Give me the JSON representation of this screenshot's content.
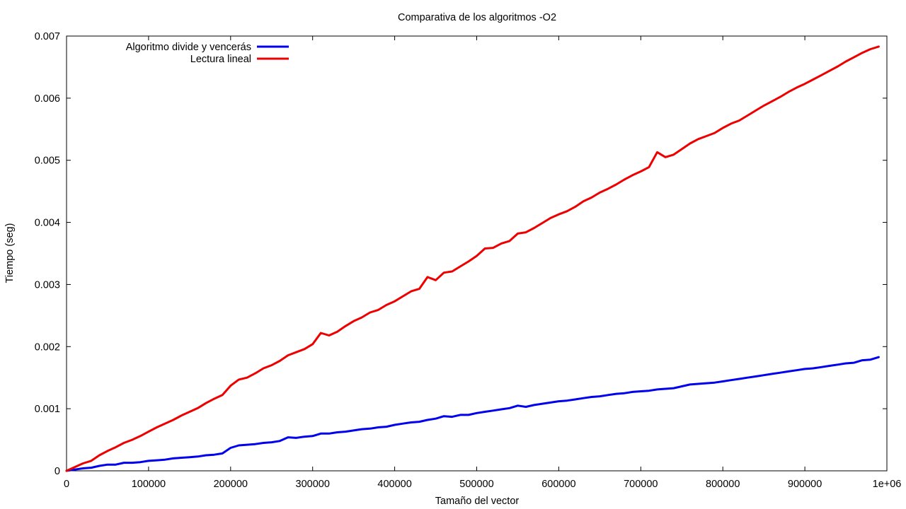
{
  "chart_data": {
    "type": "line",
    "title": "Comparativa de los algoritmos -O2",
    "xlabel": "Tamaño del vector",
    "ylabel": "Tiempo (seg)",
    "xlim": [
      0,
      1000000
    ],
    "ylim": [
      0,
      0.007
    ],
    "x_ticks": [
      {
        "value": 0,
        "label": "0"
      },
      {
        "value": 100000,
        "label": "100000"
      },
      {
        "value": 200000,
        "label": "200000"
      },
      {
        "value": 300000,
        "label": "300000"
      },
      {
        "value": 400000,
        "label": "400000"
      },
      {
        "value": 500000,
        "label": "500000"
      },
      {
        "value": 600000,
        "label": "600000"
      },
      {
        "value": 700000,
        "label": "700000"
      },
      {
        "value": 800000,
        "label": "800000"
      },
      {
        "value": 900000,
        "label": "900000"
      },
      {
        "value": 1000000,
        "label": "1e+06"
      }
    ],
    "y_ticks": [
      {
        "value": 0,
        "label": "0"
      },
      {
        "value": 0.001,
        "label": "0.001"
      },
      {
        "value": 0.002,
        "label": "0.002"
      },
      {
        "value": 0.003,
        "label": "0.003"
      },
      {
        "value": 0.004,
        "label": "0.004"
      },
      {
        "value": 0.005,
        "label": "0.005"
      },
      {
        "value": 0.006,
        "label": "0.006"
      },
      {
        "value": 0.007,
        "label": "0.007"
      }
    ],
    "grid": false,
    "legend_position": "top-left",
    "series": [
      {
        "name": "Algoritmo divide y vencerás",
        "color": "#0000ee",
        "points": [
          [
            0,
            0.0
          ],
          [
            10000,
            2e-05
          ],
          [
            20000,
            4e-05
          ],
          [
            30000,
            5e-05
          ],
          [
            40000,
            8e-05
          ],
          [
            50000,
            0.0001
          ],
          [
            60000,
            0.0001
          ],
          [
            70000,
            0.00013
          ],
          [
            80000,
            0.00013
          ],
          [
            90000,
            0.00014
          ],
          [
            100000,
            0.00016
          ],
          [
            110000,
            0.00017
          ],
          [
            120000,
            0.00018
          ],
          [
            130000,
            0.0002
          ],
          [
            140000,
            0.00021
          ],
          [
            150000,
            0.00022
          ],
          [
            160000,
            0.00023
          ],
          [
            170000,
            0.00025
          ],
          [
            180000,
            0.00026
          ],
          [
            190000,
            0.00028
          ],
          [
            200000,
            0.00037
          ],
          [
            210000,
            0.00041
          ],
          [
            220000,
            0.00042
          ],
          [
            230000,
            0.00043
          ],
          [
            240000,
            0.00045
          ],
          [
            250000,
            0.00046
          ],
          [
            260000,
            0.00048
          ],
          [
            270000,
            0.00054
          ],
          [
            280000,
            0.00053
          ],
          [
            290000,
            0.00055
          ],
          [
            300000,
            0.00056
          ],
          [
            310000,
            0.0006
          ],
          [
            320000,
            0.0006
          ],
          [
            330000,
            0.00062
          ],
          [
            340000,
            0.00063
          ],
          [
            350000,
            0.00065
          ],
          [
            360000,
            0.00067
          ],
          [
            370000,
            0.00068
          ],
          [
            380000,
            0.0007
          ],
          [
            390000,
            0.00071
          ],
          [
            400000,
            0.00074
          ],
          [
            410000,
            0.00076
          ],
          [
            420000,
            0.00078
          ],
          [
            430000,
            0.00079
          ],
          [
            440000,
            0.00082
          ],
          [
            450000,
            0.00084
          ],
          [
            460000,
            0.00088
          ],
          [
            470000,
            0.00087
          ],
          [
            480000,
            0.0009
          ],
          [
            490000,
            0.0009
          ],
          [
            500000,
            0.00093
          ],
          [
            510000,
            0.00095
          ],
          [
            520000,
            0.00097
          ],
          [
            530000,
            0.00099
          ],
          [
            540000,
            0.00101
          ],
          [
            550000,
            0.00105
          ],
          [
            560000,
            0.00103
          ],
          [
            570000,
            0.00106
          ],
          [
            580000,
            0.00108
          ],
          [
            590000,
            0.0011
          ],
          [
            600000,
            0.00112
          ],
          [
            610000,
            0.00113
          ],
          [
            620000,
            0.00115
          ],
          [
            630000,
            0.00117
          ],
          [
            640000,
            0.00119
          ],
          [
            650000,
            0.0012
          ],
          [
            660000,
            0.00122
          ],
          [
            670000,
            0.00124
          ],
          [
            680000,
            0.00125
          ],
          [
            690000,
            0.00127
          ],
          [
            700000,
            0.00128
          ],
          [
            710000,
            0.00129
          ],
          [
            720000,
            0.00131
          ],
          [
            730000,
            0.00132
          ],
          [
            740000,
            0.00133
          ],
          [
            750000,
            0.00136
          ],
          [
            760000,
            0.00139
          ],
          [
            770000,
            0.0014
          ],
          [
            780000,
            0.00141
          ],
          [
            790000,
            0.00142
          ],
          [
            800000,
            0.00144
          ],
          [
            810000,
            0.00146
          ],
          [
            820000,
            0.00148
          ],
          [
            830000,
            0.0015
          ],
          [
            840000,
            0.00152
          ],
          [
            850000,
            0.00154
          ],
          [
            860000,
            0.00156
          ],
          [
            870000,
            0.00158
          ],
          [
            880000,
            0.0016
          ],
          [
            890000,
            0.00162
          ],
          [
            900000,
            0.00164
          ],
          [
            910000,
            0.00165
          ],
          [
            920000,
            0.00167
          ],
          [
            930000,
            0.00169
          ],
          [
            940000,
            0.00171
          ],
          [
            950000,
            0.00173
          ],
          [
            960000,
            0.00174
          ],
          [
            970000,
            0.00178
          ],
          [
            980000,
            0.00179
          ],
          [
            990000,
            0.00183
          ]
        ]
      },
      {
        "name": "Lectura lineal",
        "color": "#ee0000",
        "points": [
          [
            0,
            0.0
          ],
          [
            10000,
            6e-05
          ],
          [
            20000,
            0.00012
          ],
          [
            30000,
            0.00016
          ],
          [
            40000,
            0.00025
          ],
          [
            50000,
            0.00032
          ],
          [
            60000,
            0.00038
          ],
          [
            70000,
            0.00045
          ],
          [
            80000,
            0.0005
          ],
          [
            90000,
            0.00056
          ],
          [
            100000,
            0.00063
          ],
          [
            110000,
            0.0007
          ],
          [
            120000,
            0.00076
          ],
          [
            130000,
            0.00082
          ],
          [
            140000,
            0.00089
          ],
          [
            150000,
            0.00095
          ],
          [
            160000,
            0.00101
          ],
          [
            170000,
            0.00109
          ],
          [
            180000,
            0.00116
          ],
          [
            190000,
            0.00122
          ],
          [
            200000,
            0.00137
          ],
          [
            210000,
            0.00147
          ],
          [
            220000,
            0.0015
          ],
          [
            230000,
            0.00157
          ],
          [
            240000,
            0.00165
          ],
          [
            250000,
            0.0017
          ],
          [
            260000,
            0.00177
          ],
          [
            270000,
            0.00186
          ],
          [
            280000,
            0.00191
          ],
          [
            290000,
            0.00196
          ],
          [
            300000,
            0.00204
          ],
          [
            310000,
            0.00222
          ],
          [
            320000,
            0.00218
          ],
          [
            330000,
            0.00224
          ],
          [
            340000,
            0.00233
          ],
          [
            350000,
            0.00241
          ],
          [
            360000,
            0.00247
          ],
          [
            370000,
            0.00255
          ],
          [
            380000,
            0.00259
          ],
          [
            390000,
            0.00267
          ],
          [
            400000,
            0.00273
          ],
          [
            410000,
            0.00281
          ],
          [
            420000,
            0.00289
          ],
          [
            430000,
            0.00293
          ],
          [
            440000,
            0.00312
          ],
          [
            450000,
            0.00307
          ],
          [
            460000,
            0.00319
          ],
          [
            470000,
            0.00321
          ],
          [
            480000,
            0.00329
          ],
          [
            490000,
            0.00337
          ],
          [
            500000,
            0.00346
          ],
          [
            510000,
            0.00358
          ],
          [
            520000,
            0.00359
          ],
          [
            530000,
            0.00366
          ],
          [
            540000,
            0.0037
          ],
          [
            550000,
            0.00382
          ],
          [
            560000,
            0.00384
          ],
          [
            570000,
            0.00391
          ],
          [
            580000,
            0.00399
          ],
          [
            590000,
            0.00407
          ],
          [
            600000,
            0.00413
          ],
          [
            610000,
            0.00418
          ],
          [
            620000,
            0.00425
          ],
          [
            630000,
            0.00434
          ],
          [
            640000,
            0.0044
          ],
          [
            650000,
            0.00448
          ],
          [
            660000,
            0.00454
          ],
          [
            670000,
            0.00461
          ],
          [
            680000,
            0.00469
          ],
          [
            690000,
            0.00476
          ],
          [
            700000,
            0.00482
          ],
          [
            710000,
            0.00489
          ],
          [
            720000,
            0.00513
          ],
          [
            730000,
            0.00505
          ],
          [
            740000,
            0.00509
          ],
          [
            750000,
            0.00518
          ],
          [
            760000,
            0.00527
          ],
          [
            770000,
            0.00534
          ],
          [
            780000,
            0.00539
          ],
          [
            790000,
            0.00544
          ],
          [
            800000,
            0.00552
          ],
          [
            810000,
            0.00559
          ],
          [
            820000,
            0.00564
          ],
          [
            830000,
            0.00572
          ],
          [
            840000,
            0.0058
          ],
          [
            850000,
            0.00588
          ],
          [
            860000,
            0.00595
          ],
          [
            870000,
            0.00602
          ],
          [
            880000,
            0.0061
          ],
          [
            890000,
            0.00617
          ],
          [
            900000,
            0.00623
          ],
          [
            910000,
            0.0063
          ],
          [
            920000,
            0.00637
          ],
          [
            930000,
            0.00644
          ],
          [
            940000,
            0.00651
          ],
          [
            950000,
            0.00659
          ],
          [
            960000,
            0.00666
          ],
          [
            970000,
            0.00673
          ],
          [
            980000,
            0.00679
          ],
          [
            990000,
            0.00683
          ]
        ]
      }
    ]
  }
}
